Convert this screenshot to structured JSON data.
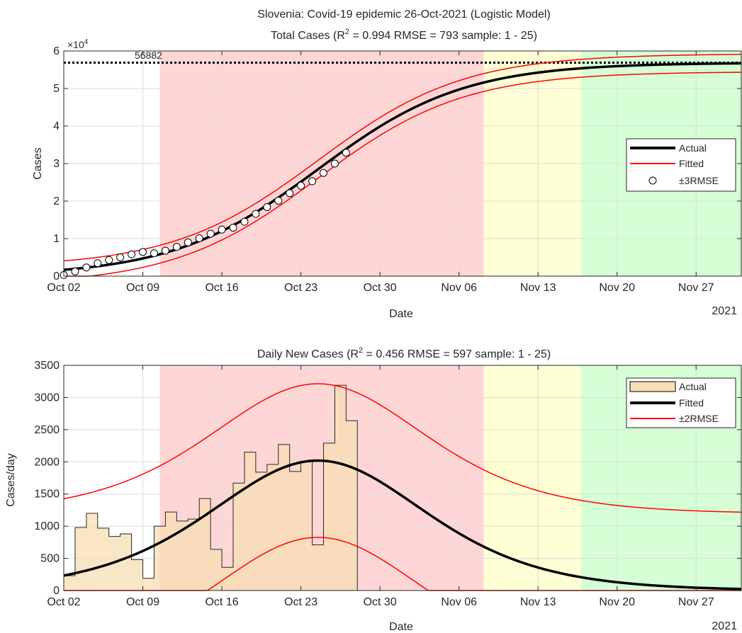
{
  "figure_year": "2021",
  "chart_data": [
    {
      "type": "line",
      "title": "Slovenia: Covid-19 epidemic 26-Oct-2021 (Logistic Model)",
      "subtitle_parts": [
        "Total Cases (R",
        "2",
        " =  0.994  RMSE =  793  sample: 1 - 25)"
      ],
      "xlabel": "Date",
      "ylabel": "Cases",
      "y_exponent_label": "×10",
      "y_exponent": "4",
      "x_tick_labels": [
        "Oct 02",
        "Oct 09",
        "Oct 16",
        "Oct 23",
        "Oct 30",
        "Nov 06",
        "Nov 13",
        "Nov 20",
        "Nov 27"
      ],
      "x_tick_days": [
        0,
        7,
        14,
        21,
        28,
        35,
        42,
        49,
        56
      ],
      "xlim_days": [
        0,
        60
      ],
      "y_tick_labels": [
        "0",
        "1",
        "2",
        "3",
        "4",
        "5",
        "6"
      ],
      "y_tick_values": [
        0,
        10000,
        20000,
        30000,
        40000,
        50000,
        60000
      ],
      "ylim": [
        0,
        60000
      ],
      "grid": true,
      "phase_bands": [
        {
          "from_day": 8.5,
          "to_day": 37.2,
          "color": "#ffd6d6"
        },
        {
          "from_day": 37.2,
          "to_day": 45.8,
          "color": "#ffffd6"
        },
        {
          "from_day": 45.8,
          "to_day": 60,
          "color": "#d6ffd6"
        }
      ],
      "asymptote": {
        "value": 56882,
        "label": "56882"
      },
      "legend": {
        "position": "right",
        "entries": [
          "Actual",
          "Fitted",
          "±3RMSE"
        ]
      },
      "model": {
        "K": 56882,
        "r": 0.155,
        "t0": 22.5,
        "band_width": 2380
      },
      "fitted_curve_color": "#000000",
      "band_curve_color": "#ff0000",
      "actual_points_x_days": [
        0,
        1,
        2,
        3,
        4,
        5,
        6,
        7,
        8,
        9,
        10,
        11,
        12,
        13,
        14,
        15,
        16,
        17,
        18,
        19,
        20,
        21,
        22,
        23,
        24,
        25
      ],
      "actual_points_values": [
        300,
        1250,
        2300,
        3450,
        4300,
        5000,
        5800,
        6450,
        6100,
        6800,
        7800,
        9000,
        10100,
        11300,
        12400,
        12900,
        14500,
        16600,
        18400,
        20100,
        22100,
        24100,
        25300,
        27500,
        30000,
        32900
      ]
    },
    {
      "type": "bar",
      "title_parts": [
        "Daily New Cases   (R",
        "2",
        " =  0.456  RMSE =  597   sample: 1 - 25)"
      ],
      "xlabel": "Date",
      "ylabel": "Cases/day",
      "x_tick_labels": [
        "Oct 02",
        "Oct 09",
        "Oct 16",
        "Oct 23",
        "Oct 30",
        "Nov 06",
        "Nov 13",
        "Nov 20",
        "Nov 27"
      ],
      "x_tick_days": [
        0,
        7,
        14,
        21,
        28,
        35,
        42,
        49,
        56
      ],
      "xlim_days": [
        0,
        60
      ],
      "y_tick_labels": [
        "0",
        "500",
        "1000",
        "1500",
        "2000",
        "2500",
        "3000",
        "3500"
      ],
      "y_tick_values": [
        0,
        500,
        1000,
        1500,
        2000,
        2500,
        3000,
        3500
      ],
      "ylim": [
        0,
        3500
      ],
      "grid": true,
      "phase_bands": [
        {
          "from_day": 8.5,
          "to_day": 37.2,
          "color": "#ffd6d6"
        },
        {
          "from_day": 37.2,
          "to_day": 45.8,
          "color": "#ffffd6"
        },
        {
          "from_day": 45.8,
          "to_day": 60,
          "color": "#d6ffd6"
        }
      ],
      "legend": {
        "position": "top-right",
        "entries": [
          "Actual",
          "Fitted",
          "±2RMSE"
        ]
      },
      "bar_fill": "#f5deb3",
      "bars_x_days": [
        0,
        1,
        2,
        3,
        4,
        5,
        6,
        7,
        8,
        9,
        10,
        11,
        12,
        13,
        14,
        15,
        16,
        17,
        18,
        19,
        20,
        21,
        22,
        23,
        24,
        25
      ],
      "bars_values": [
        230,
        980,
        1200,
        970,
        840,
        880,
        480,
        190,
        1000,
        1220,
        1080,
        1110,
        1430,
        640,
        360,
        1670,
        2150,
        1840,
        1960,
        2270,
        1850,
        2010,
        710,
        2290,
        3190,
        2640
      ],
      "fitted_peak": 2020,
      "fitted_peak_day": 22.5,
      "fitted_r": 0.155,
      "band_offset": 1194,
      "fitted_curve_color": "#000000",
      "band_curve_color": "#ff0000"
    }
  ]
}
